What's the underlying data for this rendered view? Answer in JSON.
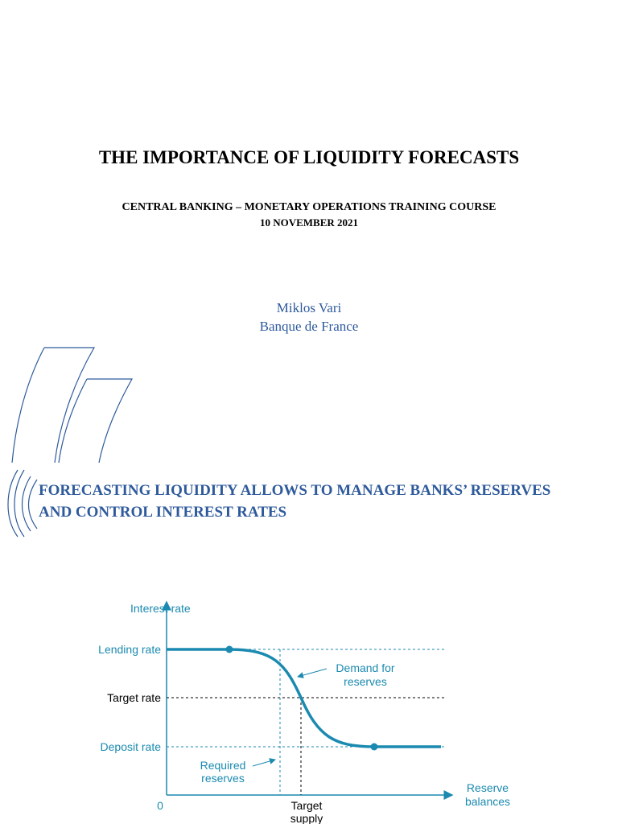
{
  "slide1": {
    "title": "THE IMPORTANCE OF LIQUIDITY FORECASTS",
    "subtitle": [
      "CENTRAL BANKING – MONETARY OPERATIONS TRAINING COURSE",
      "10 NOVEMBER 2021"
    ],
    "author": "Miklos Vari",
    "affiliation": "Banque de France"
  },
  "slide2": {
    "heading": [
      "FORECASTING LIQUIDITY ALLOWS TO MANAGE BANKS’ RESERVES",
      "AND CONTROL INTEREST RATES"
    ],
    "diagram": {
      "y_axis_label": "Interest rate",
      "origin": "0",
      "x_axis_label": [
        "Reserve",
        "balances"
      ],
      "rates": [
        "Lending rate",
        "Target rate",
        "Deposit rate"
      ],
      "demand_label": [
        "Demand for",
        "reserves"
      ],
      "required_label": [
        "Required",
        "reserves"
      ],
      "target_supply_label": [
        "Target",
        "supply"
      ]
    }
  }
}
